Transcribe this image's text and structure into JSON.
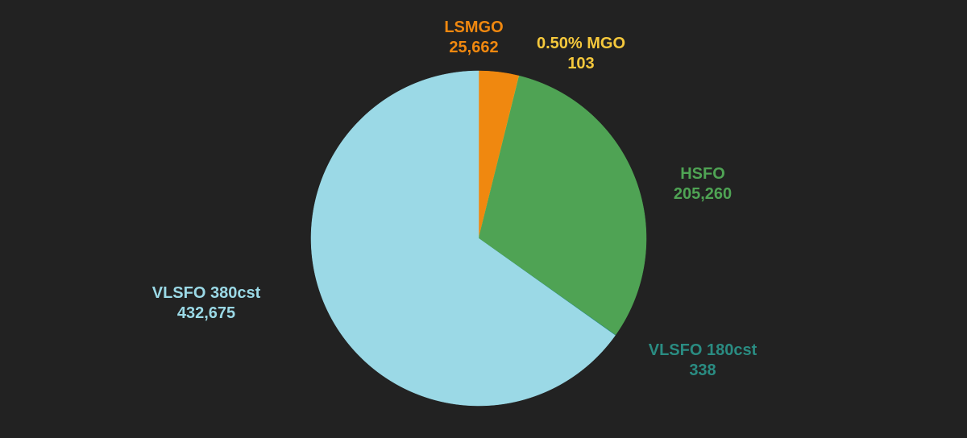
{
  "colors": {
    "background": "#222222"
  },
  "chart_data": {
    "type": "pie",
    "title": "",
    "start_angle_deg": 0,
    "direction": "clockwise",
    "slices": [
      {
        "label": "LSMGO",
        "value": 25662,
        "value_text": "25,662",
        "color": "#F0880F",
        "label_color": "#F0880F"
      },
      {
        "label": "0.50% MGO",
        "value": 103,
        "value_text": "103",
        "color": "#F5C83C",
        "label_color": "#F5C83C"
      },
      {
        "label": "HSFO",
        "value": 205260,
        "value_text": "205,260",
        "color": "#4FA354",
        "label_color": "#4FA354"
      },
      {
        "label": "VLSFO 180cst",
        "value": 338,
        "value_text": "338",
        "color": "#2A8C82",
        "label_color": "#2A8C82"
      },
      {
        "label": "VLSFO 380cst",
        "value": 432675,
        "value_text": "432,675",
        "color": "#9BD9E6",
        "label_color": "#9BD9E6"
      }
    ]
  }
}
